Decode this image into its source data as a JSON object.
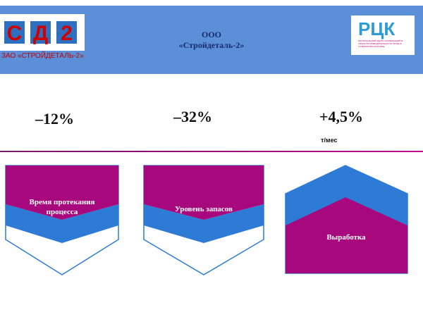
{
  "header": {
    "logo_letters": [
      "С",
      "Д",
      "2"
    ],
    "logo_caption": "ЗАО «СТРОЙДЕТАЛЬ-2»",
    "title_line1": "ООО",
    "title_line2": "«Стройдеталь-2»",
    "partner_logo": "РЦК",
    "partner_caption": "РЕГИОНАЛЬНЫЙ ЦЕНТР КОМПЕТЕНЦИЙ В СФЕРЕ ПРОИЗВОДИТЕЛЬНОСТИ ТРУДА В СТАВРОПОЛЬСКОМ КРАЕ"
  },
  "metrics": [
    {
      "value": "–12%"
    },
    {
      "value": "–32%"
    },
    {
      "value": "+4,5%",
      "unit": "т/мес"
    }
  ],
  "cards": [
    {
      "label": "Время протекания процесса"
    },
    {
      "label": "Уровень запасов"
    },
    {
      "label": "Выработка"
    }
  ]
}
